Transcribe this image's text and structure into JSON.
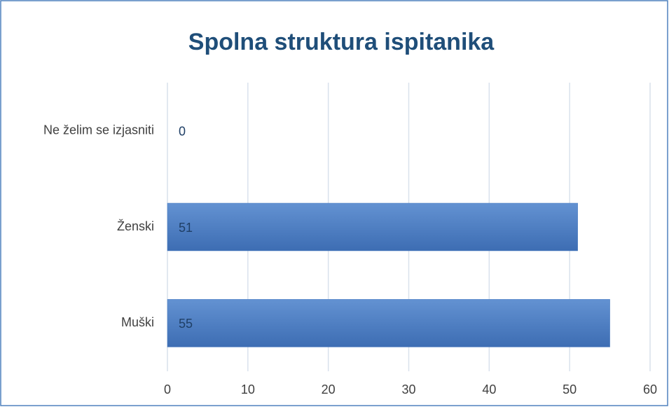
{
  "chart_data": {
    "type": "hbar",
    "title": "Spolna struktura ispitanika",
    "categories": [
      "Ne želim se izjasniti",
      "Ženski",
      "Muški"
    ],
    "values": [
      0,
      51,
      55
    ],
    "color": "#4a7cc0",
    "xlim": [
      0,
      60
    ],
    "xticks": [
      0,
      10,
      20,
      30,
      40,
      50,
      60
    ],
    "grid": true
  }
}
